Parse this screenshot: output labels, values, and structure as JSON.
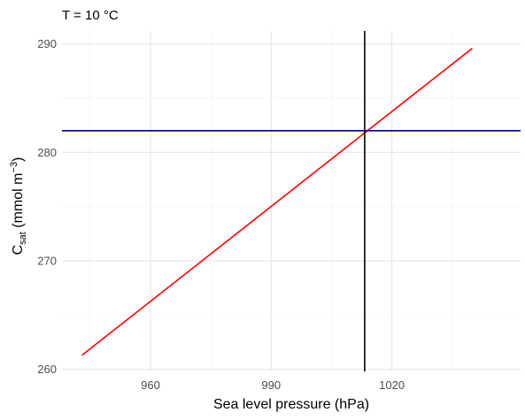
{
  "chart_data": {
    "type": "line",
    "title": "T = 10 °C",
    "xlabel": "Sea level pressure (hPa)",
    "ylabel": {
      "main": "C",
      "sub": "sat",
      "unit_open": " (mmol m",
      "sup": "−3",
      "unit_close": ")"
    },
    "xlim": [
      938,
      1052
    ],
    "ylim": [
      259.8,
      291.2
    ],
    "x_ticks": [
      960,
      990,
      1020
    ],
    "y_ticks": [
      260,
      270,
      280,
      290
    ],
    "grid": true,
    "series": [
      {
        "color": "#ff0000",
        "x": [
          943,
          1040
        ],
        "y": [
          261.3,
          289.6
        ]
      }
    ],
    "reference_lines": {
      "horizontal": {
        "y": 282.0,
        "color": "#00008b"
      },
      "vertical": {
        "x": 1013.25,
        "color": "#000000"
      }
    }
  }
}
